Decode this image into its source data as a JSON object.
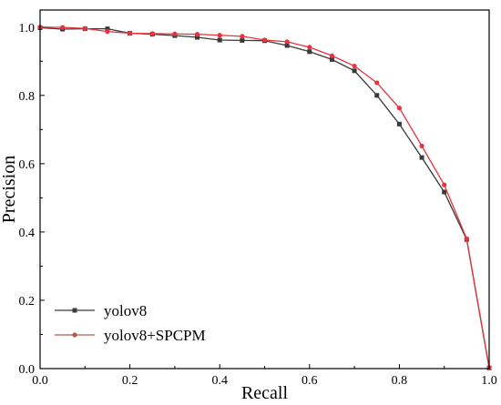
{
  "chart_data": {
    "type": "line",
    "xlabel": "Recall",
    "ylabel": "Precision",
    "xlim": [
      0.0,
      1.0
    ],
    "ylim": [
      0.0,
      1.05
    ],
    "x_ticks": [
      "0.0",
      "0.2",
      "0.4",
      "0.6",
      "0.8",
      "1.0"
    ],
    "y_ticks": [
      "0.0",
      "0.2",
      "0.4",
      "0.6",
      "0.8",
      "1.0"
    ],
    "grid": false,
    "legend_position": "bottom-left",
    "series": [
      {
        "name": "yolov8",
        "color": "#3a3a3a",
        "marker": "square",
        "x": [
          0.0,
          0.05,
          0.1,
          0.15,
          0.2,
          0.25,
          0.3,
          0.35,
          0.4,
          0.45,
          0.5,
          0.55,
          0.6,
          0.65,
          0.7,
          0.75,
          0.8,
          0.85,
          0.9,
          0.95,
          1.0
        ],
        "y": [
          0.998,
          0.994,
          0.995,
          0.995,
          0.982,
          0.979,
          0.975,
          0.97,
          0.962,
          0.961,
          0.96,
          0.946,
          0.928,
          0.905,
          0.872,
          0.8,
          0.716,
          0.618,
          0.517,
          0.378,
          0.002
        ]
      },
      {
        "name": "yolov8+SPCPM",
        "color": "#e8323c",
        "marker": "circle",
        "x": [
          0.0,
          0.05,
          0.1,
          0.15,
          0.2,
          0.25,
          0.3,
          0.35,
          0.4,
          0.45,
          0.5,
          0.55,
          0.6,
          0.65,
          0.7,
          0.75,
          0.8,
          0.85,
          0.9,
          0.95,
          1.0
        ],
        "y": [
          1.0,
          0.999,
          0.996,
          0.987,
          0.982,
          0.981,
          0.98,
          0.979,
          0.976,
          0.973,
          0.962,
          0.957,
          0.941,
          0.916,
          0.886,
          0.837,
          0.763,
          0.652,
          0.538,
          0.38,
          0.003
        ]
      }
    ]
  }
}
